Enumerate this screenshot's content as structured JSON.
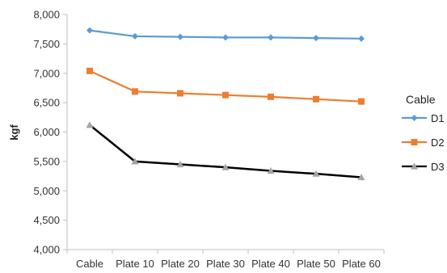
{
  "chart_data": {
    "type": "line",
    "title": "",
    "xlabel": "",
    "ylabel": "kgf",
    "categories": [
      "Cable",
      "Plate 10",
      "Plate 20",
      "Plate 30",
      "Plate 40",
      "Plate 50",
      "Plate 60"
    ],
    "ylim": [
      4000,
      8000
    ],
    "ytick_step": 500,
    "ytick_labels": [
      "4,000",
      "4,500",
      "5,000",
      "5,500",
      "6,000",
      "6,500",
      "7,000",
      "7,500",
      "8,000"
    ],
    "grid": false,
    "legend": {
      "title": "Cable",
      "placement": "right"
    },
    "series": [
      {
        "name": "D1",
        "color": "#5B9BD5",
        "marker": "diamond",
        "values": [
          7730,
          7630,
          7620,
          7610,
          7610,
          7600,
          7590
        ]
      },
      {
        "name": "D2",
        "color": "#ED7D31",
        "marker": "square",
        "values": [
          7040,
          6690,
          6660,
          6630,
          6600,
          6560,
          6520
        ]
      },
      {
        "name": "D3",
        "color": "#000000",
        "marker_color": "#A5A5A5",
        "marker": "triangle",
        "values": [
          6120,
          5500,
          5450,
          5400,
          5340,
          5290,
          5230
        ]
      }
    ]
  }
}
